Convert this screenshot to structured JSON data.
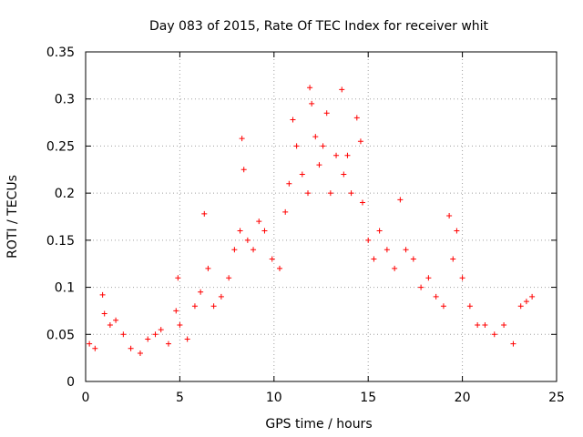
{
  "chart_data": {
    "type": "scatter",
    "title": "Day 083 of 2015, Rate Of TEC Index for receiver whit",
    "xlabel": "GPS time / hours",
    "ylabel": "ROTI / TECUs",
    "xlim": [
      0,
      25
    ],
    "ylim": [
      0,
      0.35
    ],
    "xticks": [
      0,
      5,
      10,
      15,
      20,
      25
    ],
    "yticks": [
      0,
      0.05,
      0.1,
      0.15,
      0.2,
      0.25,
      0.3,
      0.35
    ],
    "xtick_labels": [
      "0",
      "5",
      "10",
      "15",
      "20",
      "25"
    ],
    "ytick_labels": [
      "0",
      "0.05",
      "0.1",
      "0.15",
      "0.2",
      "0.25",
      "0.3",
      "0.35"
    ],
    "grid": true,
    "marker": "+",
    "series": [
      {
        "name": "ROTI",
        "color": "#ff0000",
        "x": [
          0.2,
          0.5,
          0.9,
          1.0,
          1.3,
          1.6,
          2.0,
          2.4,
          2.9,
          3.3,
          3.7,
          4.0,
          4.4,
          4.8,
          4.9,
          5.0,
          5.4,
          5.8,
          6.1,
          6.3,
          6.5,
          6.8,
          7.2,
          7.6,
          7.9,
          8.2,
          8.3,
          8.4,
          8.6,
          8.9,
          9.2,
          9.5,
          9.9,
          10.3,
          10.6,
          10.8,
          11.0,
          11.2,
          11.5,
          11.8,
          11.9,
          12.0,
          12.2,
          12.4,
          12.6,
          12.8,
          13.0,
          13.3,
          13.6,
          13.7,
          13.9,
          14.1,
          14.4,
          14.6,
          14.7,
          15.0,
          15.3,
          15.6,
          16.0,
          16.4,
          16.7,
          17.0,
          17.4,
          17.8,
          18.2,
          18.6,
          19.0,
          19.3,
          19.5,
          19.7,
          20.0,
          20.4,
          20.8,
          21.2,
          21.7,
          22.2,
          22.7,
          23.1,
          23.4,
          23.7
        ],
        "y": [
          0.04,
          0.035,
          0.092,
          0.072,
          0.06,
          0.065,
          0.05,
          0.035,
          0.03,
          0.045,
          0.05,
          0.055,
          0.04,
          0.075,
          0.11,
          0.06,
          0.045,
          0.08,
          0.095,
          0.178,
          0.12,
          0.08,
          0.09,
          0.11,
          0.14,
          0.16,
          0.258,
          0.225,
          0.15,
          0.14,
          0.17,
          0.16,
          0.13,
          0.12,
          0.18,
          0.21,
          0.278,
          0.25,
          0.22,
          0.2,
          0.312,
          0.295,
          0.26,
          0.23,
          0.25,
          0.285,
          0.2,
          0.24,
          0.31,
          0.22,
          0.24,
          0.2,
          0.28,
          0.255,
          0.19,
          0.15,
          0.13,
          0.16,
          0.14,
          0.12,
          0.193,
          0.14,
          0.13,
          0.1,
          0.11,
          0.09,
          0.08,
          0.176,
          0.13,
          0.16,
          0.11,
          0.08,
          0.06,
          0.06,
          0.05,
          0.06,
          0.04,
          0.08,
          0.085,
          0.09
        ]
      }
    ]
  }
}
